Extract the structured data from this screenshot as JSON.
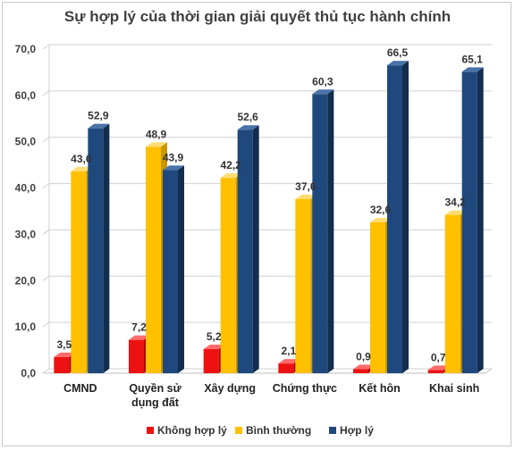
{
  "chart_data": {
    "type": "bar",
    "title": "Sự hợp lý của thời gian giải quyết thủ tục hành chính",
    "categories": [
      [
        "CMND"
      ],
      [
        "Quyền sử",
        "dụng đất"
      ],
      [
        "Xây dựng"
      ],
      [
        "Chứng thực"
      ],
      [
        "Kết hôn"
      ],
      [
        "Khai sinh"
      ]
    ],
    "series": [
      {
        "name": "Không hợp lý",
        "values": [
          3.5,
          7.2,
          5.2,
          2.1,
          0.9,
          0.7
        ],
        "labels": [
          "3,5",
          "7,2",
          "5,2",
          "2,1",
          "0,9",
          "0,7"
        ],
        "color": "#ee1111",
        "side": "#b00000",
        "top": "#ff6a6a"
      },
      {
        "name": "Bình thường",
        "values": [
          43.6,
          48.9,
          42.2,
          37.6,
          32.6,
          34.2
        ],
        "labels": [
          "43,6",
          "48,9",
          "42,2",
          "37,6",
          "32,6",
          "34,2"
        ],
        "color": "#ffc000",
        "side": "#c99700",
        "top": "#ffdd73"
      },
      {
        "name": "Hợp lý",
        "values": [
          52.9,
          43.9,
          52.6,
          60.3,
          66.5,
          65.1
        ],
        "labels": [
          "52,9",
          "43,9",
          "52,6",
          "60,3",
          "66,5",
          "65,1"
        ],
        "color": "#1f497d",
        "side": "#132d4e",
        "top": "#4a74a8"
      }
    ],
    "ylim": [
      0,
      70
    ],
    "yticks": [
      "0,0",
      "10,0",
      "20,0",
      "30,0",
      "40,0",
      "50,0",
      "60,0",
      "70,0"
    ],
    "grid": true,
    "legend_position": "bottom"
  }
}
